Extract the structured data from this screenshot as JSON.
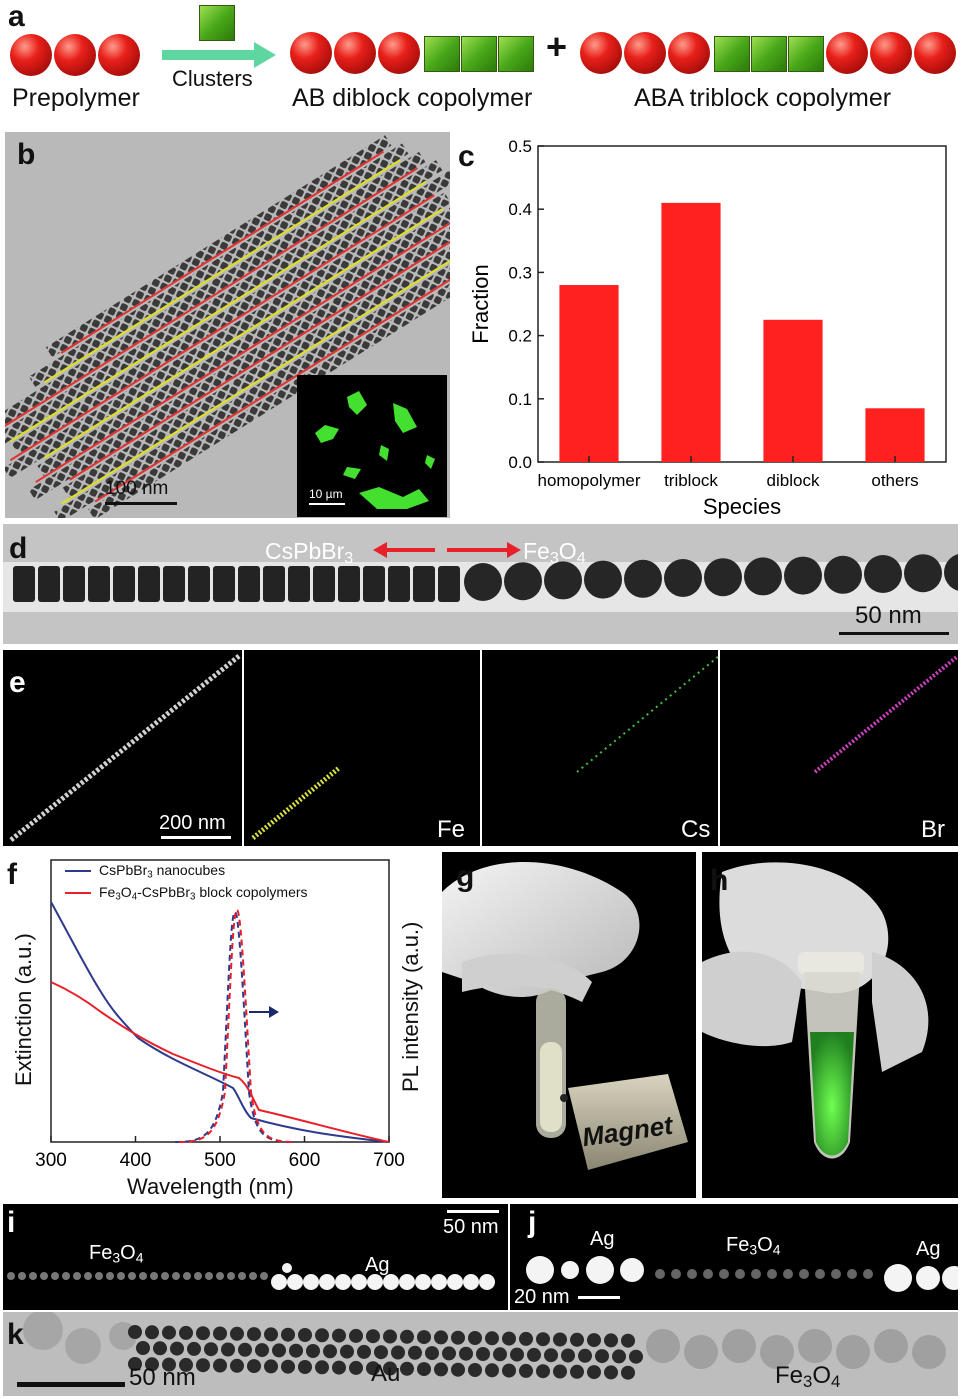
{
  "panel_a": {
    "label": "a",
    "clusters_label": "Clusters",
    "prepolymer_label": "Prepolymer",
    "diblock_label": "AB diblock copolymer",
    "plus": "+",
    "triblock_label": "ABA triblock copolymer",
    "colors": {
      "sphere": "#e8201a",
      "cube": "#4aa81a",
      "arrow": "#5fd6a0"
    }
  },
  "panel_b": {
    "label": "b",
    "scale": "100 nm",
    "inset_scale": "10 µm"
  },
  "panel_c": {
    "label": "c"
  },
  "chart_data": {
    "type": "bar",
    "categories": [
      "homopolymer",
      "triblock",
      "diblock",
      "others"
    ],
    "values": [
      0.28,
      0.41,
      0.225,
      0.085
    ],
    "xlabel": "Species",
    "ylabel": "Fraction",
    "ylim": [
      0,
      0.5
    ],
    "yticks": [
      "0.0",
      "0.1",
      "0.2",
      "0.3",
      "0.4",
      "0.5"
    ],
    "bar_color": "#ff2020"
  },
  "panel_d": {
    "label": "d",
    "left": "CsPbBr",
    "left_sub": "3",
    "right": "Fe",
    "right_sub1": "3",
    "right_mid": "O",
    "right_sub2": "4",
    "scale": "50 nm"
  },
  "panel_e": {
    "label": "e",
    "scale": "200 nm",
    "fe": "Fe",
    "cs": "Cs",
    "br": "Br"
  },
  "panel_f": {
    "label": "f",
    "legend1": "CsPbBr",
    "legend1_sub": "3",
    "legend1_tail": " nanocubes",
    "legend2a": "Fe",
    "legend2_sub1": "3",
    "legend2b": "O",
    "legend2_sub2": "4",
    "legend2c": "-CsPbBr",
    "legend2_sub3": "3",
    "legend2d": " block copolymers",
    "xlabel": "Wavelength (nm)",
    "ylabel_left": "Extinction (a.u.)",
    "ylabel_right": "PL intensity (a.u.)",
    "xticks": [
      "300",
      "400",
      "500",
      "600",
      "700"
    ],
    "colors": {
      "blue": "#2e3a8c",
      "red": "#e8202a"
    }
  },
  "panel_g": {
    "label": "g",
    "magnet": "Magnet"
  },
  "panel_h": {
    "label": "h"
  },
  "panel_i": {
    "label": "i",
    "fe": "Fe",
    "fe_sub1": "3",
    "fe_mid": "O",
    "fe_sub2": "4",
    "ag": "Ag",
    "scale": "50 nm"
  },
  "panel_j": {
    "label": "j",
    "ag1": "Ag",
    "fe": "Fe",
    "fe_sub1": "3",
    "fe_mid": "O",
    "fe_sub2": "4",
    "ag2": "Ag",
    "scale": "20 nm"
  },
  "panel_k": {
    "label": "k",
    "scale": "50 nm",
    "au": "Au",
    "fe": "Fe",
    "fe_sub1": "3",
    "fe_mid": "O",
    "fe_sub2": "4"
  }
}
